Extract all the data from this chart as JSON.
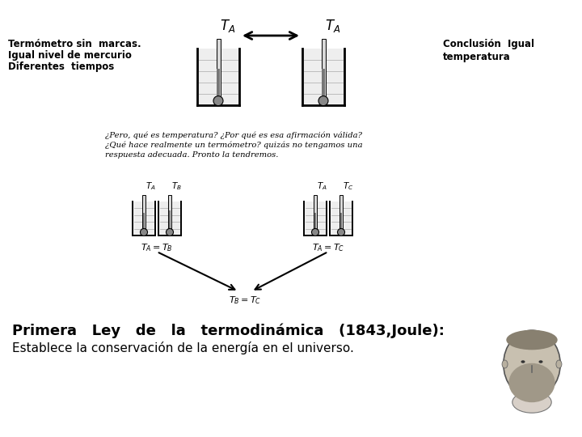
{
  "bg_color": "#ffffff",
  "left_label1": "Termómetro sin  marcas.",
  "left_label2": "Igual nivel de mercurio",
  "left_label3": "Diferentes  tiempos",
  "right_label1": "Conclusión  Igual",
  "right_label2": "temperatura",
  "middle_text1": "¿Pero, qué es temperatura? ¿Por qué es esa afirmación válida?",
  "middle_text2": "¿Qué hace realmente un termómetro? quizás no tengamos una",
  "middle_text3": "respuesta adecuada. Pronto la tendremos.",
  "eq1": "$T_A = T_B$",
  "eq2": "$T_A = T_C$",
  "eq3": "$T_B = T_C$",
  "bottom_line1": "Primera   Ley   de   la   termodinámica   (1843,Joule):",
  "bottom_line2": "Establece la conservación de la energía en el universo.",
  "ta1": "$T_A$",
  "ta2": "$T_A$",
  "ta3": "$T_A$",
  "ta4": "$T_A$",
  "tb": "$T_B$",
  "tc": "$T_C$"
}
